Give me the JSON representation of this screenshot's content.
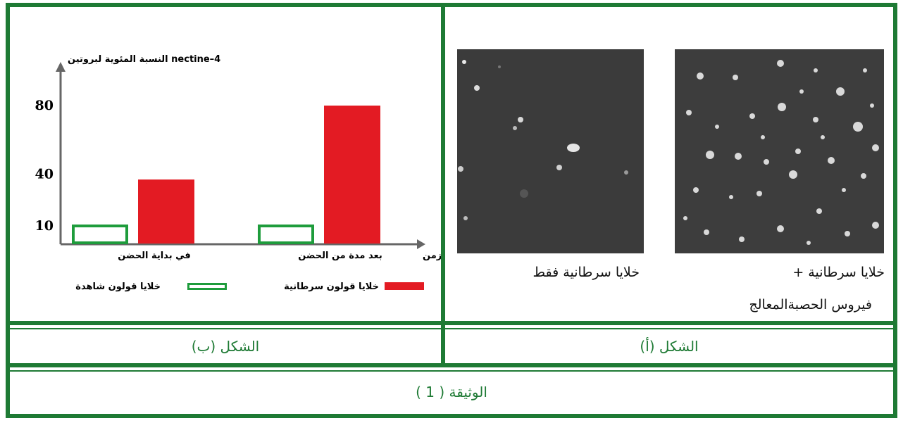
{
  "document": {
    "title": "الوثيقة ( 1 )",
    "accent_color": "#1e7a34"
  },
  "figure_a": {
    "caption": "الشكل (أ)",
    "left_photo_caption": "خلايا سرطانية فقط",
    "right_photo_caption_line1": "خلايا سرطانية  +",
    "right_photo_caption_line2": "فيروس الحصبةالمعالج"
  },
  "figure_b": {
    "caption": "الشكل (ب)",
    "legend": [
      {
        "label": "خلايا قولون سرطانية",
        "color": "#e31b23",
        "style": "filled"
      },
      {
        "label": "خلايا قولون شاهدة",
        "color": "#1e9c3c",
        "style": "outline"
      }
    ]
  },
  "chart_data": {
    "type": "bar",
    "ylabel": "النسبة المئوية لبروتين nectine–4",
    "xlabel": "الزمن",
    "categories": [
      "في بداية الحضن",
      "بعد مدة من الحضن"
    ],
    "series": [
      {
        "name": "خلايا قولون شاهدة",
        "values": [
          10,
          10
        ],
        "color": "#1e9c3c",
        "style": "outline"
      },
      {
        "name": "خلايا قولون سرطانية",
        "values": [
          37,
          80
        ],
        "color": "#e31b23",
        "style": "filled"
      }
    ],
    "yticks": [
      10,
      40,
      80
    ],
    "ylim": [
      0,
      100
    ],
    "grid": false
  }
}
